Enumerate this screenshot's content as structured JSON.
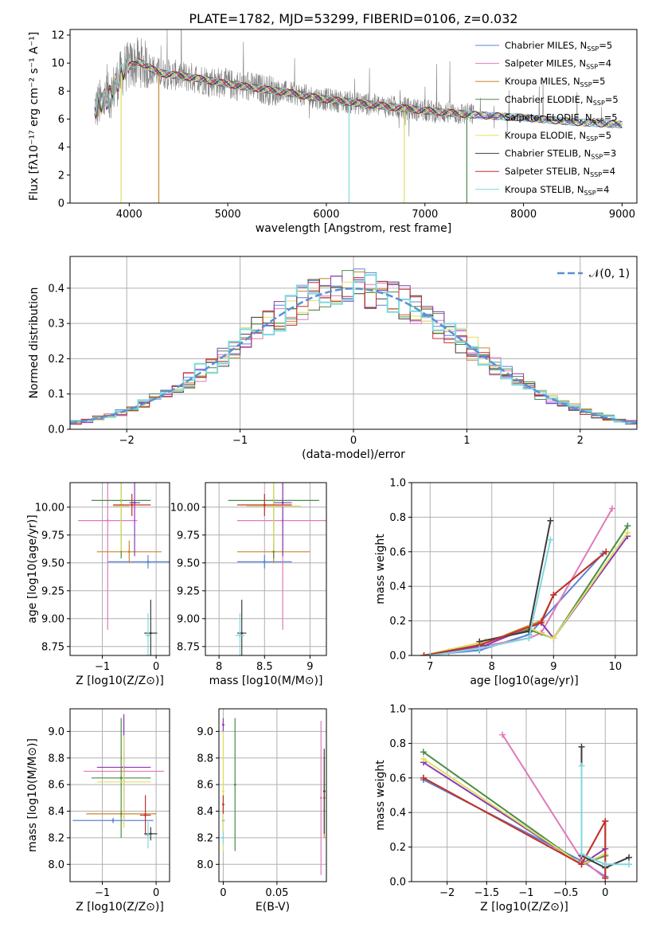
{
  "chart_data": [
    {
      "type": "line",
      "id": "spectrum",
      "title": "PLATE=1782, MJD=53299, FIBERID=0106, z=0.032",
      "xlabel": "wavelength [Angstrom, rest frame]",
      "ylabel": "Flux [fλ10⁻¹⁷ erg cm⁻² s⁻¹ A⁻¹]",
      "xlim": [
        3400,
        9150
      ],
      "ylim": [
        0,
        12.4
      ],
      "xticks": [
        4000,
        5000,
        6000,
        7000,
        8000,
        9000
      ],
      "yticks": [
        0,
        2,
        4,
        6,
        8,
        10,
        12
      ],
      "grid": false,
      "legend_position": "top-right",
      "data_color": "#808080",
      "continuum": [
        [
          3650,
          6.8
        ],
        [
          3800,
          7.6
        ],
        [
          3950,
          9.6
        ],
        [
          4100,
          10.1
        ],
        [
          4300,
          9.3
        ],
        [
          4500,
          9.1
        ],
        [
          4700,
          8.9
        ],
        [
          5000,
          8.5
        ],
        [
          5300,
          8.2
        ],
        [
          5600,
          7.9
        ],
        [
          6000,
          7.4
        ],
        [
          6500,
          7.0
        ],
        [
          7000,
          6.6
        ],
        [
          7500,
          6.3
        ],
        [
          8000,
          6.1
        ],
        [
          8500,
          5.8
        ],
        [
          9000,
          5.6
        ]
      ],
      "model_dips": [
        {
          "series": 5,
          "x": 3918,
          "y": 0
        },
        {
          "series": 2,
          "x": 4300,
          "y": 0
        },
        {
          "series": 8,
          "x": 6230,
          "y": 0
        },
        {
          "series": 5,
          "x": 6790,
          "y": 0
        },
        {
          "series": 3,
          "x": 7425,
          "y": 0
        }
      ],
      "series": [
        {
          "name": "Chabrier MILES, N",
          "sub": "SSP",
          "suffix": "=5",
          "color": "#5a84d8"
        },
        {
          "name": "Salpeter MILES, N",
          "sub": "SSP",
          "suffix": "=4",
          "color": "#e07ab8"
        },
        {
          "name": "Kroupa MILES, N",
          "sub": "SSP",
          "suffix": "=5",
          "color": "#c8862a"
        },
        {
          "name": "Chabrier ELODIE, N",
          "sub": "SSP",
          "suffix": "=5",
          "color": "#4a8c4a"
        },
        {
          "name": "Salpeter ELODIE, N",
          "sub": "SSP",
          "suffix": "=5",
          "color": "#8a3ab8"
        },
        {
          "name": "Kroupa ELODIE, N",
          "sub": "SSP",
          "suffix": "=5",
          "color": "#e0e060"
        },
        {
          "name": "Chabrier STELIB, N",
          "sub": "SSP",
          "suffix": "=3",
          "color": "#3c3c3c"
        },
        {
          "name": "Salpeter STELIB, N",
          "sub": "SSP",
          "suffix": "=4",
          "color": "#c03030"
        },
        {
          "name": "Kroupa STELIB, N",
          "sub": "SSP",
          "suffix": "=4",
          "color": "#7fd8dc"
        }
      ]
    },
    {
      "type": "line",
      "id": "residuals",
      "xlabel": "(data-model)/error",
      "ylabel": "Normed distribution",
      "xlim": [
        -2.5,
        2.5
      ],
      "ylim": [
        0,
        0.49
      ],
      "xticks": [
        -2,
        -1,
        0,
        1,
        2
      ],
      "yticks": [
        0.0,
        0.1,
        0.2,
        0.3,
        0.4
      ],
      "grid": true,
      "legend_position": "top-right",
      "legend_label": "𝒩(0, 1)",
      "normal_color": "#5a90d8",
      "bin_width": 0.1,
      "hist_base": [
        0.025,
        0.03,
        0.035,
        0.04,
        0.045,
        0.05,
        0.055,
        0.06,
        0.065,
        0.075,
        0.085,
        0.095,
        0.105,
        0.115,
        0.13,
        0.14,
        0.155,
        0.17,
        0.185,
        0.205,
        0.225,
        0.245,
        0.265,
        0.285,
        0.305,
        0.32,
        0.335,
        0.35,
        0.365,
        0.375,
        0.385,
        0.39,
        0.395,
        0.4,
        0.4,
        0.398,
        0.395,
        0.39,
        0.385,
        0.378,
        0.37,
        0.36,
        0.35,
        0.34,
        0.325,
        0.31,
        0.295,
        0.28,
        0.26,
        0.245,
        0.23,
        0.215,
        0.2,
        0.185,
        0.17,
        0.155,
        0.14,
        0.125,
        0.115,
        0.105,
        0.095,
        0.085,
        0.075,
        0.065,
        0.058,
        0.05,
        0.045,
        0.04,
        0.035,
        0.03,
        0.025,
        0.022,
        0.02,
        0.018,
        0.016,
        0.015,
        0.014,
        0.013,
        0.012,
        0.011,
        0.01,
        0.01,
        0.01,
        0.01,
        0.01,
        0.01,
        0.01,
        0.01,
        0.01,
        0.01,
        0.01,
        0.01,
        0.01,
        0.01,
        0.01,
        0.01,
        0.01,
        0.01,
        0.01,
        0.01
      ],
      "hist_start": -2.5
    },
    {
      "type": "scatter",
      "id": "age-vs-z",
      "xlabel": "Z [log10(Z/Z⊙)]",
      "ylabel": "age  [log10(age/yr)]",
      "xlim": [
        -1.6,
        0.25
      ],
      "ylim": [
        8.67,
        10.22
      ],
      "xticks": [
        -1,
        0
      ],
      "yticks": [
        8.75,
        9.0,
        9.25,
        9.5,
        9.75,
        10.0
      ],
      "grid": true,
      "points": [
        {
          "s": 0,
          "x": -0.15,
          "y": 9.51,
          "xerr": 0.75,
          "yerr": 0.06
        },
        {
          "s": 1,
          "x": -0.9,
          "y": 9.88,
          "xerr": 0.55,
          "yerr": 0.98
        },
        {
          "s": 2,
          "x": -0.5,
          "y": 9.6,
          "xerr": 0.6,
          "yerr": 0.1
        },
        {
          "s": 3,
          "x": -0.65,
          "y": 10.06,
          "xerr": 0.55,
          "yerr": 0.52
        },
        {
          "s": 4,
          "x": -0.4,
          "y": 10.04,
          "xerr": 0.1,
          "yerr": 0.48
        },
        {
          "s": 5,
          "x": -0.65,
          "y": 10.01,
          "xerr": 0.15,
          "yerr": 0.4
        },
        {
          "s": 6,
          "x": -0.1,
          "y": 8.87,
          "xerr": 0.12,
          "yerr": 0.3
        },
        {
          "s": 7,
          "x": -0.45,
          "y": 10.02,
          "xerr": 0.35,
          "yerr": 0.1
        },
        {
          "s": 8,
          "x": -0.15,
          "y": 8.85,
          "xerr": 0.05,
          "yerr": 0.2
        }
      ]
    },
    {
      "type": "scatter",
      "id": "age-vs-mass",
      "xlabel": "mass [log10(M/M⊙)]",
      "ylabel": "",
      "xlim": [
        7.85,
        9.18
      ],
      "ylim": [
        8.67,
        10.22
      ],
      "xticks": [
        8.0,
        8.5,
        9.0
      ],
      "yticks": [
        8.75,
        9.0,
        9.25,
        9.5,
        9.75,
        10.0
      ],
      "grid": true,
      "points": [
        {
          "s": 0,
          "x": 8.5,
          "y": 9.51,
          "xerr": 0.3,
          "yerr": 0.06
        },
        {
          "s": 1,
          "x": 8.7,
          "y": 9.88,
          "xerr": 0.5,
          "yerr": 0.98
        },
        {
          "s": 2,
          "x": 8.6,
          "y": 9.6,
          "xerr": 0.4,
          "yerr": 0.1
        },
        {
          "s": 3,
          "x": 8.6,
          "y": 10.06,
          "xerr": 0.5,
          "yerr": 0.52
        },
        {
          "s": 4,
          "x": 8.7,
          "y": 10.04,
          "xerr": 0.1,
          "yerr": 0.48
        },
        {
          "s": 5,
          "x": 8.6,
          "y": 10.01,
          "xerr": 0.3,
          "yerr": 0.4
        },
        {
          "s": 6,
          "x": 8.25,
          "y": 8.87,
          "xerr": 0.05,
          "yerr": 0.3
        },
        {
          "s": 7,
          "x": 8.5,
          "y": 10.02,
          "xerr": 0.3,
          "yerr": 0.1
        },
        {
          "s": 8,
          "x": 8.23,
          "y": 8.85,
          "xerr": 0.05,
          "yerr": 0.2
        }
      ]
    },
    {
      "type": "line",
      "id": "massweight-vs-age",
      "xlabel": "age  [log10(age/yr)]",
      "ylabel": "mass weight",
      "xlim": [
        6.7,
        10.35
      ],
      "ylim": [
        0,
        1
      ],
      "xticks": [
        7,
        8,
        9,
        10
      ],
      "yticks": [
        0.0,
        0.2,
        0.4,
        0.6,
        0.8,
        1.0
      ],
      "grid": true,
      "series_points": [
        {
          "s": 0,
          "pts": [
            [
              6.9,
              0.0
            ],
            [
              7.8,
              0.03
            ],
            [
              8.6,
              0.12
            ],
            [
              9.8,
              0.59
            ]
          ]
        },
        {
          "s": 1,
          "pts": [
            [
              7.3,
              0.02
            ],
            [
              8.6,
              0.1
            ],
            [
              8.8,
              0.13
            ],
            [
              9.95,
              0.85
            ]
          ]
        },
        {
          "s": 2,
          "pts": [
            [
              7.0,
              0.0
            ],
            [
              7.8,
              0.06
            ],
            [
              8.8,
              0.2
            ],
            [
              9.0,
              0.35
            ],
            [
              9.85,
              0.6
            ]
          ]
        },
        {
          "s": 3,
          "pts": [
            [
              6.9,
              0.0
            ],
            [
              7.9,
              0.08
            ],
            [
              8.6,
              0.15
            ],
            [
              9.0,
              0.1
            ],
            [
              10.2,
              0.75
            ]
          ]
        },
        {
          "s": 4,
          "pts": [
            [
              6.9,
              0.0
            ],
            [
              7.9,
              0.06
            ],
            [
              8.8,
              0.19
            ],
            [
              9.0,
              0.1
            ],
            [
              10.2,
              0.69
            ]
          ]
        },
        {
          "s": 5,
          "pts": [
            [
              6.9,
              0.0
            ],
            [
              7.9,
              0.08
            ],
            [
              8.6,
              0.16
            ],
            [
              9.0,
              0.1
            ],
            [
              10.2,
              0.71
            ]
          ]
        },
        {
          "s": 6,
          "pts": [
            [
              7.8,
              0.08
            ],
            [
              8.6,
              0.14
            ],
            [
              8.95,
              0.78
            ]
          ]
        },
        {
          "s": 7,
          "pts": [
            [
              6.9,
              0.0
            ],
            [
              7.8,
              0.06
            ],
            [
              8.8,
              0.19
            ],
            [
              9.0,
              0.35
            ],
            [
              9.85,
              0.6
            ]
          ]
        },
        {
          "s": 8,
          "pts": [
            [
              7.0,
              0.0
            ],
            [
              7.8,
              0.04
            ],
            [
              8.6,
              0.1
            ],
            [
              8.95,
              0.67
            ]
          ]
        }
      ]
    },
    {
      "type": "scatter",
      "id": "mass-vs-z",
      "xlabel": "Z [log10(Z/Z⊙)]",
      "ylabel": "mass [log10(M/M⊙)]",
      "xlim": [
        -1.6,
        0.25
      ],
      "ylim": [
        7.87,
        9.17
      ],
      "xticks": [
        -1,
        0
      ],
      "yticks": [
        8.0,
        8.2,
        8.4,
        8.6,
        8.8,
        9.0
      ],
      "grid": true,
      "points": [
        {
          "s": 0,
          "x": -0.8,
          "y": 8.33,
          "xerr": 0.75,
          "yerr": 0.02
        },
        {
          "s": 1,
          "x": -0.6,
          "y": 8.7,
          "xerr": 0.75,
          "yerr": 0.4
        },
        {
          "s": 2,
          "x": -0.65,
          "y": 8.38,
          "xerr": 0.65,
          "yerr": 0.02
        },
        {
          "s": 3,
          "x": -0.65,
          "y": 8.65,
          "xerr": 0.55,
          "yerr": 0.45
        },
        {
          "s": 4,
          "x": -0.6,
          "y": 8.73,
          "xerr": 0.5,
          "yerr": 0.4
        },
        {
          "s": 5,
          "x": -0.6,
          "y": 8.62,
          "xerr": 0.5,
          "yerr": 0.35
        },
        {
          "s": 6,
          "x": -0.1,
          "y": 8.23,
          "xerr": 0.12,
          "yerr": 0.05
        },
        {
          "s": 7,
          "x": -0.2,
          "y": 8.37,
          "xerr": 0.1,
          "yerr": 0.15
        },
        {
          "s": 8,
          "x": -0.15,
          "y": 8.22,
          "xerr": 0.05,
          "yerr": 0.1
        }
      ]
    },
    {
      "type": "scatter",
      "id": "mass-vs-ebv",
      "xlabel": "E(B-V)",
      "ylabel": "",
      "xlim": [
        -0.004,
        0.096
      ],
      "ylim": [
        7.87,
        9.17
      ],
      "xticks": [
        0.0,
        0.05
      ],
      "yticks": [
        8.0,
        8.2,
        8.4,
        8.6,
        8.8,
        9.0
      ],
      "grid": true,
      "points": [
        {
          "s": 0,
          "x": 0.0,
          "y": 8.33,
          "xerr": 0,
          "yerr": 0.1
        },
        {
          "s": 1,
          "x": 0.091,
          "y": 8.5,
          "xerr": 0,
          "yerr": 0.58
        },
        {
          "s": 2,
          "x": 0.094,
          "y": 8.5,
          "xerr": 0,
          "yerr": 0.3
        },
        {
          "s": 3,
          "x": 0.011,
          "y": 8.6,
          "xerr": 0,
          "yerr": 0.5
        },
        {
          "s": 4,
          "x": 0.0,
          "y": 9.05,
          "xerr": 0,
          "yerr": 0.05
        },
        {
          "s": 5,
          "x": 0.0,
          "y": 8.55,
          "xerr": 0,
          "yerr": 0.45
        },
        {
          "s": 6,
          "x": 0.094,
          "y": 8.55,
          "xerr": 0,
          "yerr": 0.32
        },
        {
          "s": 7,
          "x": 0.0,
          "y": 8.45,
          "xerr": 0,
          "yerr": 0.07
        },
        {
          "s": 8,
          "x": 0.0,
          "y": 8.2,
          "xerr": 0,
          "yerr": 0.05
        }
      ]
    },
    {
      "type": "line",
      "id": "massweight-vs-z",
      "xlabel": "Z [log10(Z/Z⊙)]",
      "ylabel": "mass weight",
      "xlim": [
        -2.45,
        0.4
      ],
      "ylim": [
        0,
        1
      ],
      "xticks": [
        -2.0,
        -1.5,
        -1.0,
        -0.5,
        0.0
      ],
      "yticks": [
        0.0,
        0.2,
        0.4,
        0.6,
        0.8,
        1.0
      ],
      "grid": true,
      "series_points": [
        {
          "s": 0,
          "pts": [
            [
              -2.3,
              0.59
            ],
            [
              -0.3,
              0.12
            ],
            [
              0.0,
              0.03
            ]
          ]
        },
        {
          "s": 1,
          "pts": [
            [
              -1.3,
              0.85
            ],
            [
              -0.3,
              0.13
            ],
            [
              0.0,
              0.02
            ]
          ]
        },
        {
          "s": 2,
          "pts": [
            [
              -2.3,
              0.6
            ],
            [
              -0.3,
              0.1
            ],
            [
              0.0,
              0.35
            ],
            [
              0.0,
              0.02
            ]
          ]
        },
        {
          "s": 3,
          "pts": [
            [
              -2.3,
              0.75
            ],
            [
              -0.3,
              0.1
            ],
            [
              0.0,
              0.15
            ]
          ]
        },
        {
          "s": 4,
          "pts": [
            [
              -2.3,
              0.69
            ],
            [
              -0.3,
              0.1
            ],
            [
              0.0,
              0.19
            ]
          ]
        },
        {
          "s": 5,
          "pts": [
            [
              -2.3,
              0.71
            ],
            [
              -0.3,
              0.1
            ],
            [
              0.0,
              0.16
            ]
          ]
        },
        {
          "s": 6,
          "pts": [
            [
              -0.3,
              0.78
            ],
            [
              -0.3,
              0.15
            ],
            [
              0.0,
              0.08
            ],
            [
              0.3,
              0.14
            ]
          ]
        },
        {
          "s": 7,
          "pts": [
            [
              -2.3,
              0.6
            ],
            [
              -0.3,
              0.1
            ],
            [
              0.0,
              0.35
            ],
            [
              0.0,
              0.02
            ]
          ]
        },
        {
          "s": 8,
          "pts": [
            [
              -0.3,
              0.67
            ],
            [
              -0.3,
              0.16
            ],
            [
              0.0,
              0.1
            ],
            [
              0.3,
              0.1
            ]
          ]
        }
      ]
    }
  ]
}
